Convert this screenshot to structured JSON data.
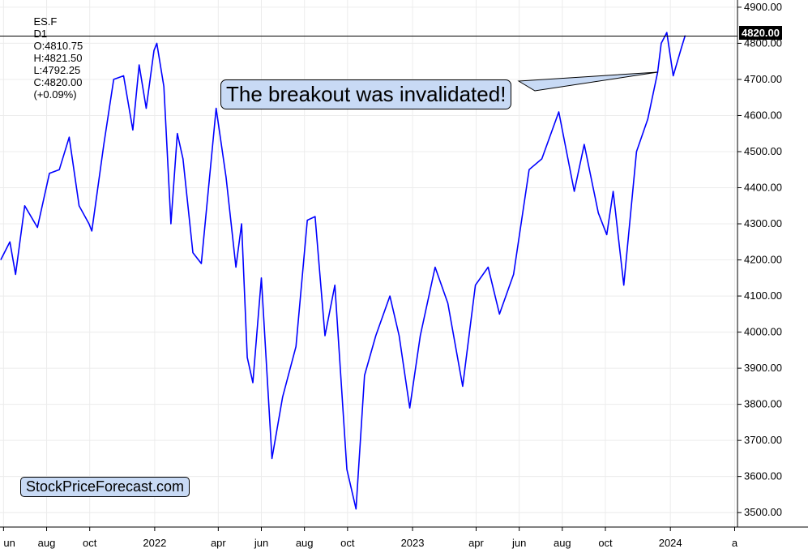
{
  "header": {
    "symbol": "ES.F",
    "timeframe": "D1",
    "open": "O:4810.75",
    "high": "H:4821.50",
    "low": "L:4792.25",
    "close": "C:4820.00",
    "change": "(+0.09%)"
  },
  "annotation": {
    "callout_text": "The breakout was invalidated!",
    "watermark_text": "StockPriceForecast.com",
    "last_price_label": "4820.00",
    "callout_fill": "#c8daf5"
  },
  "colors": {
    "series": "#0000ff",
    "horizontal_line": "#000000",
    "price_badge_bg": "#000000",
    "price_badge_text": "#ffffff"
  },
  "chart_data": {
    "type": "line",
    "title": "",
    "xlabel": "",
    "ylabel": "",
    "ylim": [
      3460,
      4920
    ],
    "yticks": [
      3500,
      3600,
      3700,
      3800,
      3900,
      4000,
      4100,
      4200,
      4300,
      4400,
      4500,
      4600,
      4700,
      4800,
      4900
    ],
    "ytick_labels": [
      "3500.00",
      "3600.00",
      "3700.00",
      "3800.00",
      "3900.00",
      "4000.00",
      "4100.00",
      "4200.00",
      "4300.00",
      "4400.00",
      "4500.00",
      "4600.00",
      "4700.00",
      "4800.00",
      "4900.00"
    ],
    "xticks": [
      "2021-06-01",
      "2021-08-01",
      "2021-10-01",
      "2022-01-01",
      "2022-04-01",
      "2022-06-01",
      "2022-08-01",
      "2022-10-01",
      "2023-01-01",
      "2023-04-01",
      "2023-06-01",
      "2023-08-01",
      "2023-10-01",
      "2024-01-01",
      "2024-04-01"
    ],
    "xtick_labels": [
      "un",
      "aug",
      "oct",
      "2022",
      "apr",
      "jun",
      "aug",
      "oct",
      "2023",
      "apr",
      "jun",
      "aug",
      "oct",
      "2024",
      "a"
    ],
    "xlim": [
      "2021-05-27",
      "2024-04-05"
    ],
    "grid": true,
    "horizontal_line": 4820,
    "series": [
      {
        "x": [
          "2021-05-28",
          "2021-06-10",
          "2021-06-18",
          "2021-07-01",
          "2021-07-19",
          "2021-08-05",
          "2021-08-19",
          "2021-09-02",
          "2021-09-16",
          "2021-09-30",
          "2021-10-04",
          "2021-10-21",
          "2021-11-04",
          "2021-11-18",
          "2021-12-01",
          "2021-12-10",
          "2021-12-20",
          "2021-12-31",
          "2022-01-04",
          "2022-01-14",
          "2022-01-24",
          "2022-02-02",
          "2022-02-10",
          "2022-02-24",
          "2022-03-08",
          "2022-03-29",
          "2022-04-12",
          "2022-04-26",
          "2022-05-04",
          "2022-05-12",
          "2022-05-20",
          "2022-06-01",
          "2022-06-16",
          "2022-07-01",
          "2022-07-20",
          "2022-08-05",
          "2022-08-16",
          "2022-08-30",
          "2022-09-13",
          "2022-09-30",
          "2022-10-13",
          "2022-10-25",
          "2022-11-10",
          "2022-11-30",
          "2022-12-13",
          "2022-12-28",
          "2023-01-12",
          "2023-02-02",
          "2023-02-20",
          "2023-03-13",
          "2023-03-31",
          "2023-04-18",
          "2023-05-04",
          "2023-05-24",
          "2023-06-15",
          "2023-07-03",
          "2023-07-27",
          "2023-08-18",
          "2023-09-01",
          "2023-09-21",
          "2023-10-03",
          "2023-10-12",
          "2023-10-27",
          "2023-11-14",
          "2023-11-30",
          "2023-12-14",
          "2023-12-19",
          "2023-12-27",
          "2024-01-05",
          "2024-01-17",
          "2024-01-22"
        ],
        "y": [
          4200,
          4250,
          4160,
          4350,
          4290,
          4440,
          4450,
          4540,
          4350,
          4300,
          4280,
          4520,
          4700,
          4710,
          4560,
          4740,
          4620,
          4780,
          4800,
          4680,
          4300,
          4550,
          4480,
          4220,
          4190,
          4620,
          4430,
          4180,
          4300,
          3930,
          3860,
          4150,
          3650,
          3820,
          3960,
          4310,
          4320,
          3990,
          4130,
          3620,
          3510,
          3880,
          3990,
          4100,
          3990,
          3790,
          3990,
          4180,
          4080,
          3850,
          4130,
          4180,
          4050,
          4160,
          4450,
          4480,
          4610,
          4390,
          4520,
          4330,
          4270,
          4390,
          4130,
          4500,
          4590,
          4720,
          4800,
          4830,
          4710,
          4790,
          4822
        ]
      }
    ]
  }
}
